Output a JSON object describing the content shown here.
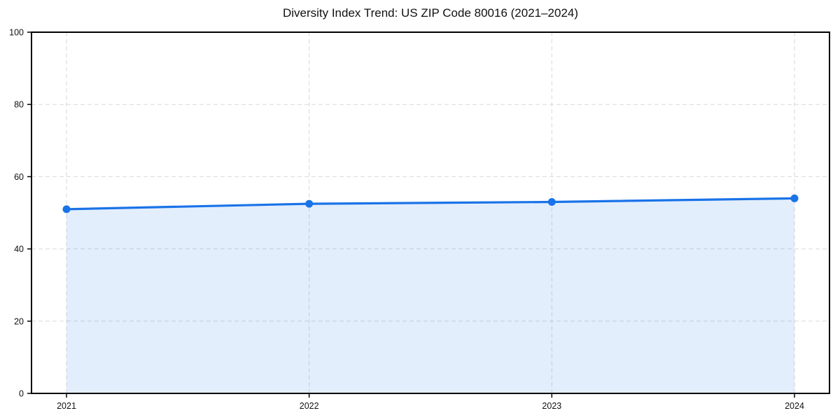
{
  "chart_data": {
    "type": "area",
    "title": "Diversity Index Trend: US ZIP Code 80016 (2021–2024)",
    "categories": [
      "2021",
      "2022",
      "2023",
      "2024"
    ],
    "values": [
      51,
      52.5,
      53,
      54
    ],
    "xlabel": "",
    "ylabel": "",
    "ylim": [
      0,
      100
    ],
    "yticks": [
      0,
      20,
      40,
      60,
      80,
      100
    ],
    "grid": true,
    "grid_style": "dashed",
    "legend": "none",
    "marker": "circle",
    "colors": {
      "line": "#1a73e8",
      "marker": "#1a73e8",
      "fill": "#1a73e8",
      "fill_opacity": 0.12,
      "grid": "#d9d9d9",
      "axis": "#000000",
      "tick_label": "#111111",
      "title": "#111111",
      "background": "#ffffff"
    }
  }
}
